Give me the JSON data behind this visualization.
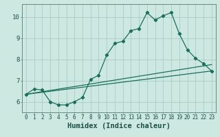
{
  "title": "",
  "xlabel": "Humidex (Indice chaleur)",
  "background_color": "#cce8e0",
  "grid_color": "#aaccC4",
  "line_color": "#1a6e5a",
  "xlim": [
    -0.5,
    23.5
  ],
  "ylim": [
    5.5,
    10.6
  ],
  "yticks": [
    6,
    7,
    8,
    9,
    10
  ],
  "xticks": [
    0,
    1,
    2,
    3,
    4,
    5,
    6,
    7,
    8,
    9,
    10,
    11,
    12,
    13,
    14,
    15,
    16,
    17,
    18,
    19,
    20,
    21,
    22,
    23
  ],
  "series": [
    [
      0,
      6.35
    ],
    [
      1,
      6.6
    ],
    [
      2,
      6.55
    ],
    [
      3,
      6.0
    ],
    [
      4,
      5.85
    ],
    [
      5,
      5.85
    ],
    [
      6,
      6.0
    ],
    [
      7,
      6.2
    ],
    [
      8,
      7.05
    ],
    [
      9,
      7.25
    ],
    [
      10,
      8.2
    ],
    [
      11,
      8.75
    ],
    [
      12,
      8.85
    ],
    [
      13,
      9.35
    ],
    [
      14,
      9.45
    ],
    [
      15,
      10.2
    ],
    [
      16,
      9.85
    ],
    [
      17,
      10.05
    ],
    [
      18,
      10.2
    ],
    [
      19,
      9.2
    ],
    [
      20,
      8.45
    ],
    [
      21,
      8.05
    ],
    [
      22,
      7.8
    ],
    [
      23,
      7.45
    ]
  ],
  "line1": [
    [
      0,
      6.35
    ],
    [
      23,
      7.45
    ]
  ],
  "line2": [
    [
      0,
      6.35
    ],
    [
      23,
      7.75
    ]
  ],
  "marker": "D",
  "markersize": 2.2,
  "linewidth": 0.9,
  "tick_fontsize": 5.5,
  "xlabel_fontsize": 7.5
}
